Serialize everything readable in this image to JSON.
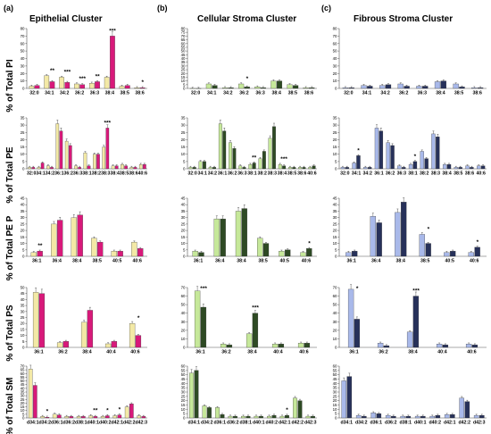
{
  "figure": {
    "panels": [
      {
        "label": "(a)",
        "title": "Epithelial Cluster"
      },
      {
        "label": "(b)",
        "title": "Cellular Stroma Cluster"
      },
      {
        "label": "(c)",
        "title": "Fibrous Stroma Cluster"
      }
    ],
    "row_labels": [
      "% of Total PI",
      "% of Total PE",
      "% of Total PE P",
      "% of Total PS",
      "% of Total SM"
    ],
    "colors": {
      "a": [
        "#f3e9a6",
        "#d8197a"
      ],
      "b": [
        "#c6e89a",
        "#2e4a24"
      ],
      "c": [
        "#a9b9ea",
        "#27315a"
      ]
    }
  },
  "chart_data": [
    {
      "type": "bar",
      "row": 0,
      "column": 0,
      "ylim": [
        0,
        80
      ],
      "yticks": [
        0,
        10,
        20,
        30,
        40,
        50,
        60,
        70,
        80
      ],
      "categories": [
        "32:0",
        "34:1",
        "34:2",
        "36:2",
        "36:3",
        "38:4",
        "38:5",
        "38:6"
      ],
      "series": [
        {
          "values": [
            3,
            17,
            15,
            6,
            7,
            15,
            3,
            1
          ]
        },
        {
          "values": [
            4,
            9,
            8,
            5,
            9,
            70,
            4,
            1
          ]
        }
      ],
      "annotations": [
        {
          "category": "34:1",
          "text": "**"
        },
        {
          "category": "34:2",
          "text": "***"
        },
        {
          "category": "36:2",
          "text": "***"
        },
        {
          "category": "36:3",
          "text": "**"
        },
        {
          "category": "38:4",
          "text": "***"
        },
        {
          "category": "38:6",
          "text": "*"
        }
      ]
    },
    {
      "type": "bar",
      "row": 0,
      "column": 1,
      "ylim": [
        0,
        80
      ],
      "yticks": [
        0,
        5,
        10,
        15,
        20,
        25,
        30,
        35,
        40,
        45,
        50,
        55,
        60,
        65,
        70,
        75,
        80
      ],
      "categories": [
        "32:0",
        "34:1",
        "34:2",
        "36:2",
        "36:3",
        "38:4",
        "38:5",
        "38:6"
      ],
      "series": [
        {
          "values": [
            0,
            6,
            1,
            6,
            2,
            10,
            5,
            1
          ]
        },
        {
          "values": [
            0,
            4,
            1,
            2,
            1,
            10,
            4,
            1
          ]
        }
      ],
      "annotations": [
        {
          "category": "36:2",
          "text": "*"
        }
      ]
    },
    {
      "type": "bar",
      "row": 0,
      "column": 2,
      "ylim": [
        0,
        80
      ],
      "yticks": [
        0,
        10,
        20,
        30,
        40,
        50,
        60,
        70,
        80
      ],
      "categories": [
        "32:0",
        "34:1",
        "34:2",
        "36:2",
        "36:3",
        "38:4",
        "38:5",
        "38:6"
      ],
      "series": [
        {
          "values": [
            1,
            4,
            4,
            6,
            3,
            9,
            6,
            1
          ]
        },
        {
          "values": [
            1,
            3,
            5,
            3,
            3,
            10,
            2,
            1
          ]
        }
      ],
      "annotations": []
    },
    {
      "type": "bar",
      "row": 1,
      "column": 0,
      "ylim": [
        0,
        35
      ],
      "yticks": [
        0,
        5,
        10,
        15,
        20,
        25,
        30,
        35
      ],
      "categories": [
        "32:0",
        "34:1",
        "34:2",
        "36:1",
        "36:2",
        "36:3",
        "38:1",
        "38:2",
        "38:3",
        "38:4",
        "38:5",
        "38:6",
        "40:6"
      ],
      "series": [
        {
          "values": [
            1,
            1,
            2,
            31,
            19,
            2,
            11,
            10,
            15,
            2,
            3,
            1,
            3
          ]
        },
        {
          "values": [
            1,
            4,
            1,
            26,
            16,
            1,
            2,
            10,
            28,
            2,
            2,
            1,
            3
          ]
        }
      ],
      "annotations": [
        {
          "category": "38:3",
          "text": "***"
        }
      ]
    },
    {
      "type": "bar",
      "row": 1,
      "column": 1,
      "ylim": [
        0,
        35
      ],
      "yticks": [
        0,
        5,
        10,
        15,
        20,
        25,
        30,
        35
      ],
      "categories": [
        "32:0",
        "34:1",
        "34:2",
        "36:1",
        "36:2",
        "36:3",
        "38:1",
        "38:2",
        "38:3",
        "38:4",
        "38:5",
        "38:6",
        "40:6"
      ],
      "series": [
        {
          "values": [
            1,
            5,
            1,
            31,
            18,
            2,
            3,
            7,
            21,
            3,
            1,
            1,
            1
          ]
        },
        {
          "values": [
            1,
            5,
            1,
            26,
            14,
            1,
            4,
            12,
            29,
            2,
            1,
            1,
            2
          ]
        }
      ],
      "annotations": [
        {
          "category": "38:1",
          "text": "**"
        },
        {
          "category": "38:4",
          "text": "***"
        }
      ]
    },
    {
      "type": "bar",
      "row": 1,
      "column": 2,
      "ylim": [
        0,
        35
      ],
      "yticks": [
        0,
        5,
        10,
        15,
        20,
        25,
        30,
        35
      ],
      "categories": [
        "32:0",
        "34:1",
        "34:2",
        "36:1",
        "36:2",
        "36:3",
        "38:1",
        "38:2",
        "38:3",
        "38:4",
        "38:5",
        "38:6",
        "40:6"
      ],
      "series": [
        {
          "values": [
            1,
            4,
            1,
            28,
            18,
            2,
            3,
            12,
            24,
            3,
            1,
            2,
            2
          ]
        },
        {
          "values": [
            1,
            9,
            1,
            26,
            16,
            1,
            5,
            7,
            22,
            3,
            1,
            1,
            2
          ]
        }
      ],
      "annotations": [
        {
          "category": "34:1",
          "text": "*"
        },
        {
          "category": "38:1",
          "text": "*"
        }
      ]
    },
    {
      "type": "bar",
      "row": 2,
      "column": 0,
      "ylim": [
        0,
        45
      ],
      "yticks": [
        0,
        5,
        10,
        15,
        20,
        25,
        30,
        35,
        40,
        45
      ],
      "categories": [
        "36:1",
        "36:4",
        "38:4",
        "38:5",
        "40:5",
        "40:6"
      ],
      "series": [
        {
          "values": [
            3,
            25,
            30,
            14,
            4,
            11
          ]
        },
        {
          "values": [
            4,
            28,
            32,
            11,
            4,
            6
          ]
        }
      ],
      "annotations": [
        {
          "category": "36:1",
          "text": "**"
        }
      ]
    },
    {
      "type": "bar",
      "row": 2,
      "column": 1,
      "ylim": [
        0,
        45
      ],
      "yticks": [
        0,
        5,
        10,
        15,
        20,
        25,
        30,
        35,
        40,
        45
      ],
      "categories": [
        "36:1",
        "36:4",
        "38:4",
        "38:5",
        "40:5",
        "40:6"
      ],
      "series": [
        {
          "values": [
            4,
            29,
            35,
            14,
            4,
            3
          ]
        },
        {
          "values": [
            3,
            29,
            37,
            10,
            5,
            6
          ]
        }
      ],
      "annotations": [
        {
          "category": "40:6",
          "text": "*"
        }
      ]
    },
    {
      "type": "bar",
      "row": 2,
      "column": 2,
      "ylim": [
        0,
        45
      ],
      "yticks": [
        0,
        5,
        10,
        15,
        20,
        25,
        30,
        35,
        40,
        45
      ],
      "categories": [
        "36:1",
        "36:4",
        "38:4",
        "38:5",
        "40:5",
        "40:6"
      ],
      "series": [
        {
          "values": [
            3,
            31,
            34,
            17,
            3,
            3
          ]
        },
        {
          "values": [
            4,
            26,
            42,
            10,
            4,
            7
          ]
        }
      ],
      "annotations": [
        {
          "category": "38:5",
          "text": "*"
        },
        {
          "category": "40:6",
          "text": "*"
        }
      ]
    },
    {
      "type": "bar",
      "row": 3,
      "column": 0,
      "ylim": [
        0,
        50
      ],
      "yticks": [
        0,
        5,
        10,
        15,
        20,
        25,
        30,
        35,
        40,
        45,
        50
      ],
      "categories": [
        "36:1",
        "36:2",
        "38:4",
        "40:4",
        "40:6"
      ],
      "series": [
        {
          "values": [
            46,
            4,
            21,
            3,
            20
          ]
        },
        {
          "values": [
            45,
            5,
            31,
            5,
            10
          ]
        }
      ],
      "annotations": [
        {
          "category": "40:6",
          "text": "*"
        }
      ]
    },
    {
      "type": "bar",
      "row": 3,
      "column": 1,
      "ylim": [
        0,
        70
      ],
      "yticks": [
        0,
        10,
        20,
        30,
        40,
        50,
        60,
        70
      ],
      "categories": [
        "36:1",
        "36:2",
        "38:4",
        "40:4",
        "40:6"
      ],
      "series": [
        {
          "values": [
            66,
            4,
            16,
            4,
            5
          ]
        },
        {
          "values": [
            47,
            3,
            40,
            4,
            5
          ]
        }
      ],
      "annotations": [
        {
          "category": "36:1",
          "text": "***"
        },
        {
          "category": "38:4",
          "text": "***"
        }
      ]
    },
    {
      "type": "bar",
      "row": 3,
      "column": 2,
      "ylim": [
        0,
        70
      ],
      "yticks": [
        0,
        10,
        20,
        30,
        40,
        50,
        60,
        70
      ],
      "categories": [
        "36:1",
        "36:2",
        "38:4",
        "40:4",
        "40:6"
      ],
      "series": [
        {
          "values": [
            68,
            5,
            18,
            4,
            4
          ]
        },
        {
          "values": [
            33,
            2,
            60,
            3,
            3
          ]
        }
      ],
      "annotations": [
        {
          "category": "36:1",
          "text": "*"
        },
        {
          "category": "38:4",
          "text": "***"
        }
      ]
    },
    {
      "type": "bar",
      "row": 4,
      "column": 0,
      "ylim": [
        0,
        70
      ],
      "yticks": [
        0,
        5,
        10,
        15,
        20,
        25,
        30,
        35,
        40,
        45,
        50,
        55,
        60,
        65,
        70
      ],
      "categories": [
        "d34:1",
        "d34:2",
        "d36:1",
        "d36:2",
        "d38:1",
        "d40:1",
        "d40:2",
        "d42:1",
        "d42:2",
        "d42:3"
      ],
      "series": [
        {
          "values": [
            66,
            2,
            5,
            2,
            2,
            3,
            2,
            3,
            15,
            3
          ]
        },
        {
          "values": [
            44,
            1,
            4,
            2,
            2,
            2,
            3,
            4,
            19,
            2
          ]
        }
      ],
      "annotations": [
        {
          "category": "d34:2",
          "text": "*"
        },
        {
          "category": "d40:1",
          "text": "**"
        },
        {
          "category": "d40:2",
          "text": "*"
        },
        {
          "category": "d42:1",
          "text": "*"
        }
      ]
    },
    {
      "type": "bar",
      "row": 4,
      "column": 1,
      "ylim": [
        0,
        60
      ],
      "yticks": [
        0,
        5,
        10,
        15,
        20,
        25,
        30,
        35,
        40,
        45,
        50,
        55,
        60
      ],
      "categories": [
        "d34:1",
        "d34:2",
        "d36:1",
        "d36:2",
        "d38:1",
        "d40:1",
        "d40:2",
        "d42:1",
        "d42:2",
        "d42:3"
      ],
      "series": [
        {
          "values": [
            52,
            14,
            12,
            2,
            2,
            2,
            2,
            2,
            23,
            2
          ]
        },
        {
          "values": [
            55,
            12,
            4,
            2,
            2,
            2,
            3,
            3,
            20,
            2
          ]
        }
      ],
      "annotations": [
        {
          "category": "d42:1",
          "text": "*"
        }
      ]
    },
    {
      "type": "bar",
      "row": 4,
      "column": 2,
      "ylim": [
        0,
        60
      ],
      "yticks": [
        0,
        5,
        10,
        15,
        20,
        25,
        30,
        35,
        40,
        45,
        50,
        55,
        60
      ],
      "categories": [
        "d34:1",
        "d34:2",
        "d36:1",
        "d36:2",
        "d38:1",
        "d40:1",
        "d40:2",
        "d42:1",
        "d42:2",
        "d42:3"
      ],
      "series": [
        {
          "values": [
            43,
            3,
            6,
            3,
            2,
            2,
            2,
            4,
            23,
            3
          ]
        },
        {
          "values": [
            48,
            2,
            5,
            2,
            2,
            2,
            3,
            4,
            19,
            3
          ]
        }
      ],
      "annotations": []
    }
  ]
}
